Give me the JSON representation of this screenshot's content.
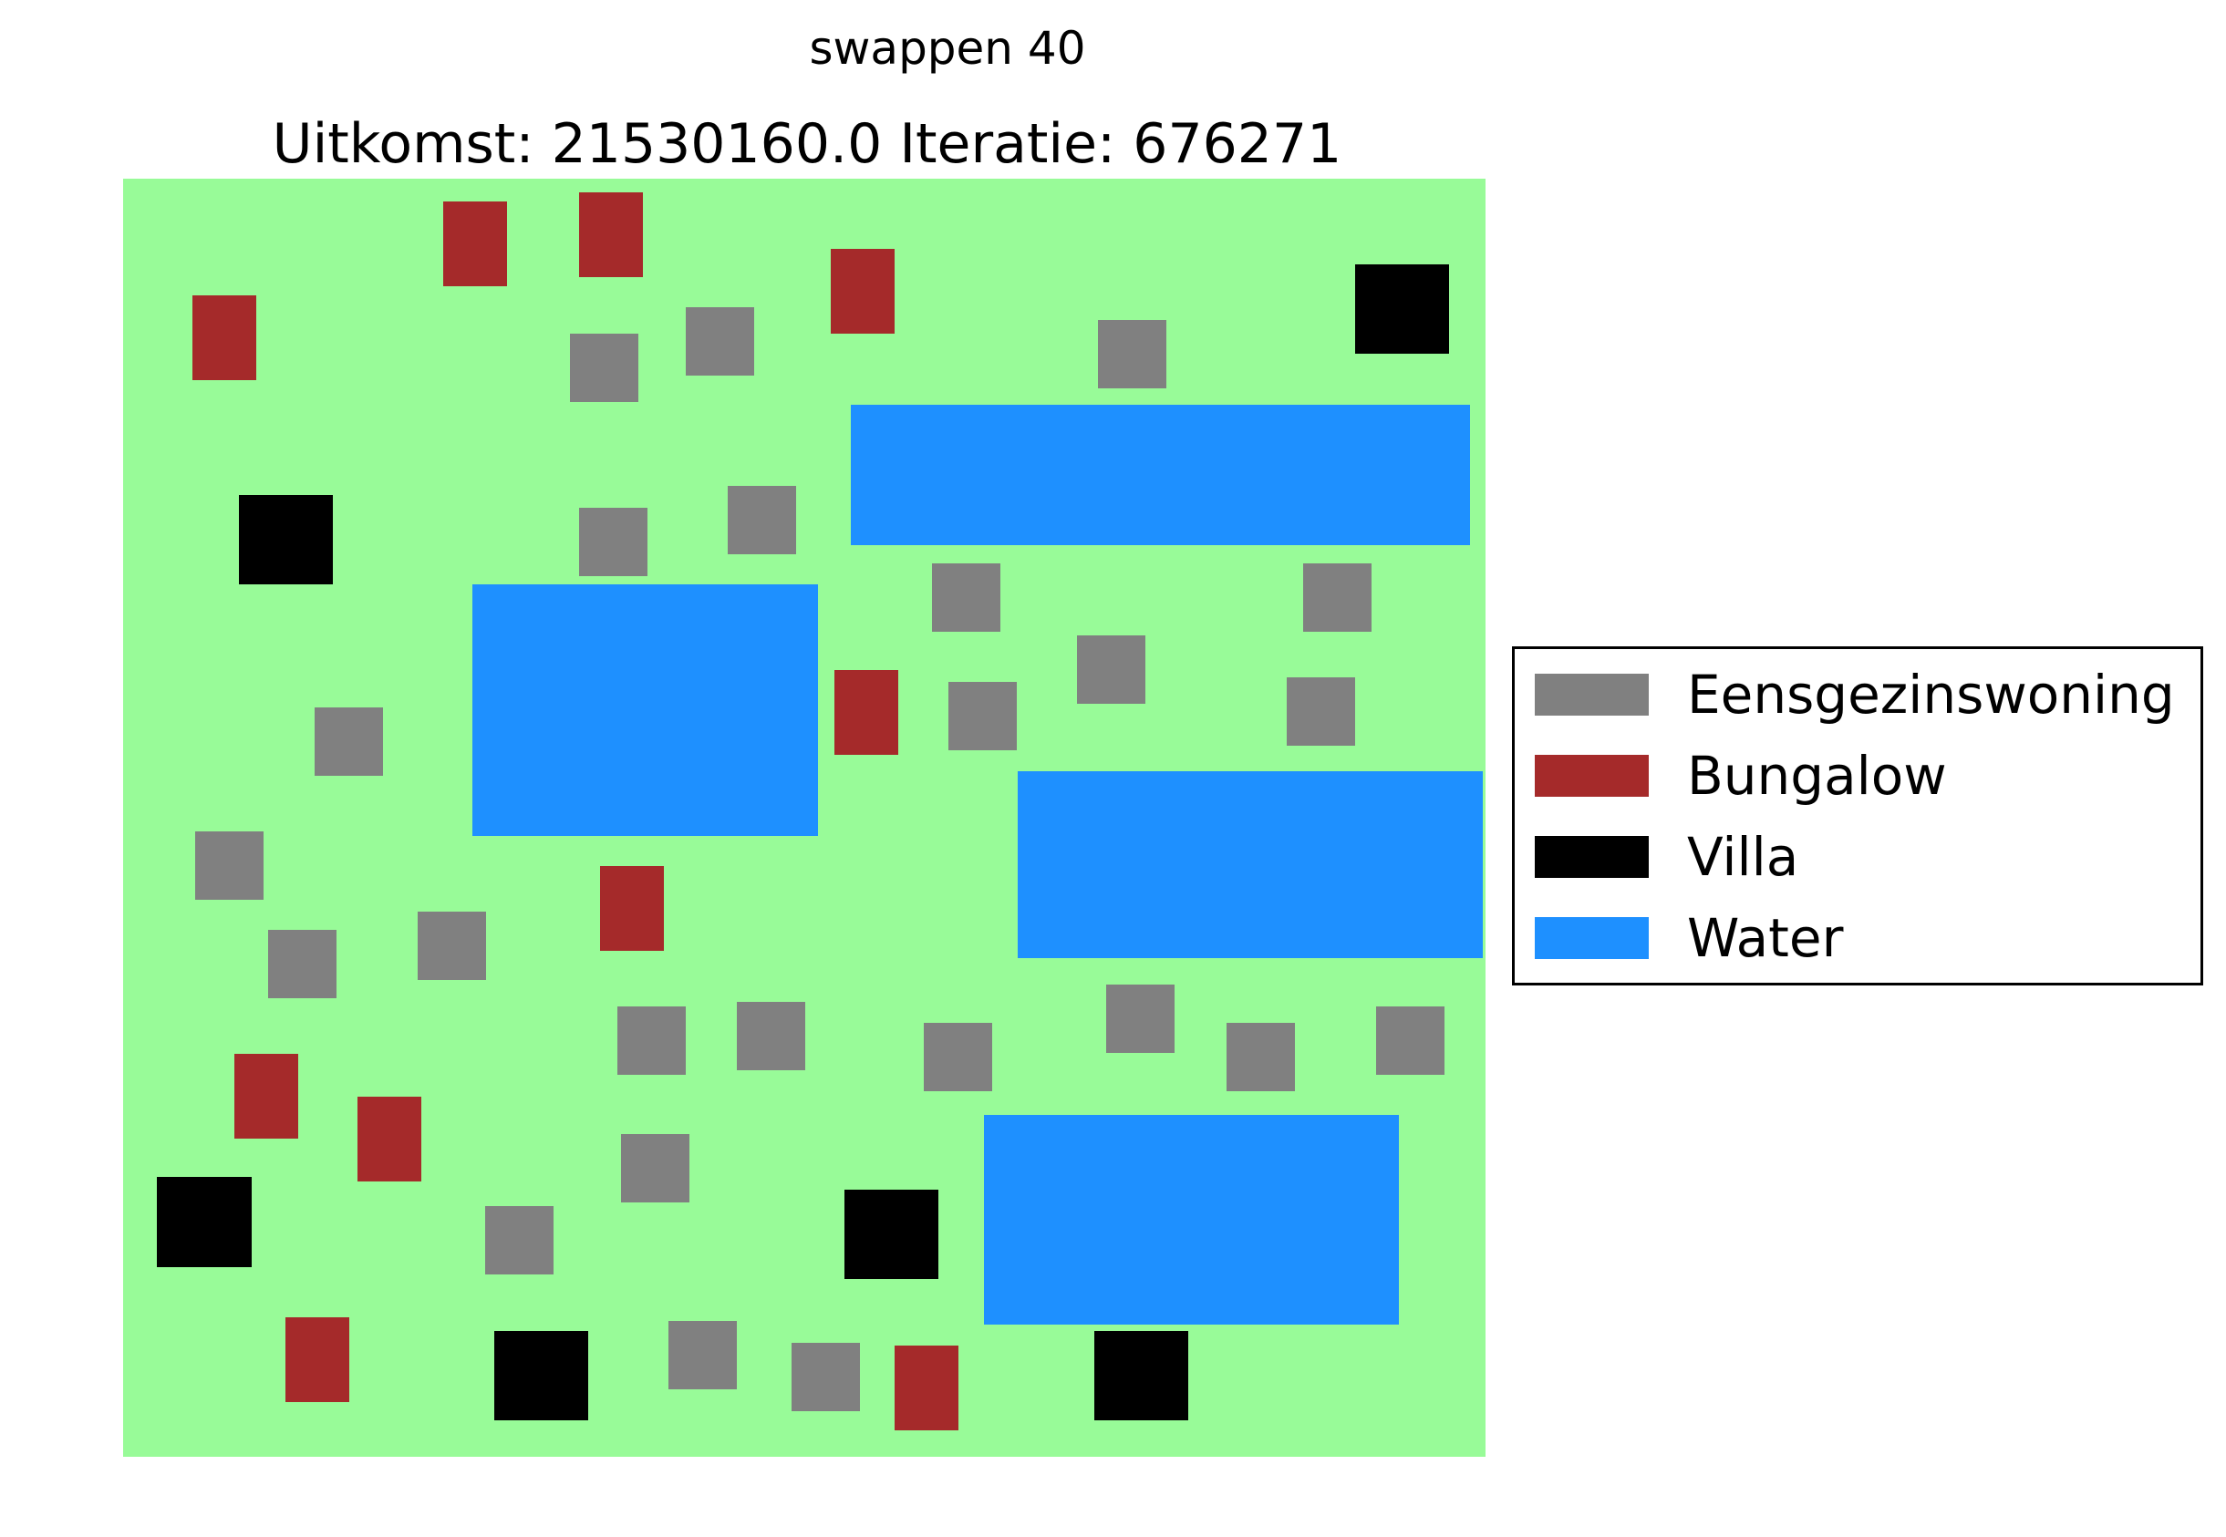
{
  "figure": {
    "suptitle": "swappen 40",
    "title": "Uitkomst: 21530160.0 Iteratie: 676271"
  },
  "legend": {
    "position": "center-right",
    "entries": [
      {
        "key": "eengezinswoning",
        "label": "Eensgezinswoning",
        "color": "#808080"
      },
      {
        "key": "bungalow",
        "label": "Bungalow",
        "color": "#a52a2a"
      },
      {
        "key": "villa",
        "label": "Villa",
        "color": "#000000"
      },
      {
        "key": "water",
        "label": "Water",
        "color": "#1e90ff"
      }
    ]
  },
  "map": {
    "background_color": "#98fb98",
    "axes_visible": false
  }
}
